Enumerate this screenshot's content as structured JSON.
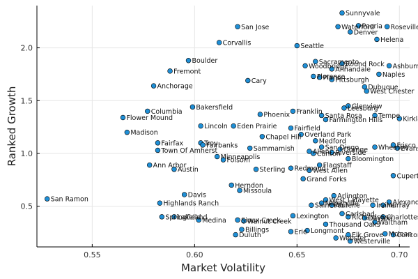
{
  "chart_data": {
    "type": "scatter",
    "title": "",
    "xlabel": "Market Volatility",
    "ylabel": "Ranked Growth",
    "xlim": [
      0.523,
      0.705
    ],
    "ylim": [
      0.115,
      2.4
    ],
    "x_ticks": [
      0.55,
      0.6,
      0.65,
      0.7
    ],
    "x_tick_labels": [
      "0.55",
      "0.60",
      "0.65",
      "0.70"
    ],
    "y_ticks": [
      0.5,
      1.0,
      1.5,
      2.0
    ],
    "y_tick_labels": [
      "0.5",
      "1.0",
      "1.5",
      "2.0"
    ],
    "grid": true,
    "legend": "none",
    "marker_color": "#1f8fd6",
    "points": [
      {
        "label": "Sunnyvale",
        "x": 0.672,
        "y": 2.33
      },
      {
        "label": "San Jose",
        "x": 0.621,
        "y": 2.2
      },
      {
        "label": "Waterford",
        "x": 0.67,
        "y": 2.2
      },
      {
        "label": "Peoria",
        "x": 0.68,
        "y": 2.21
      },
      {
        "label": "Roseville",
        "x": 0.694,
        "y": 2.2
      },
      {
        "label": "Denver",
        "x": 0.676,
        "y": 2.15
      },
      {
        "label": "Helena",
        "x": 0.689,
        "y": 2.08
      },
      {
        "label": "Corvallis",
        "x": 0.612,
        "y": 2.05
      },
      {
        "label": "Seattle",
        "x": 0.65,
        "y": 2.02
      },
      {
        "label": "Boulder",
        "x": 0.597,
        "y": 1.88
      },
      {
        "label": "Sacramento",
        "x": 0.659,
        "y": 1.87
      },
      {
        "label": "Round Rock",
        "x": 0.672,
        "y": 1.85
      },
      {
        "label": "Ashburn",
        "x": 0.695,
        "y": 1.83
      },
      {
        "label": "Woodbridge",
        "x": 0.654,
        "y": 1.83
      },
      {
        "label": "Annandale",
        "x": 0.667,
        "y": 1.8
      },
      {
        "label": "Fremont",
        "x": 0.588,
        "y": 1.78
      },
      {
        "label": "Naples",
        "x": 0.69,
        "y": 1.75
      },
      {
        "label": "Florence",
        "x": 0.658,
        "y": 1.73
      },
      {
        "label": "Plano",
        "x": 0.661,
        "y": 1.72
      },
      {
        "label": "Pittsburgh",
        "x": 0.667,
        "y": 1.7
      },
      {
        "label": "Cary",
        "x": 0.626,
        "y": 1.69
      },
      {
        "label": "Anchorage",
        "x": 0.58,
        "y": 1.64
      },
      {
        "label": "Dubuque",
        "x": 0.683,
        "y": 1.63
      },
      {
        "label": "West Chester",
        "x": 0.684,
        "y": 1.59
      },
      {
        "label": "Glenview",
        "x": 0.675,
        "y": 1.45
      },
      {
        "label": "Bakersfield",
        "x": 0.599,
        "y": 1.44
      },
      {
        "label": "Leesburg",
        "x": 0.673,
        "y": 1.43
      },
      {
        "label": "Columbia",
        "x": 0.577,
        "y": 1.4
      },
      {
        "label": "Franklin",
        "x": 0.648,
        "y": 1.4
      },
      {
        "label": "Phoenix",
        "x": 0.632,
        "y": 1.37
      },
      {
        "label": "Santa Rosa",
        "x": 0.662,
        "y": 1.36
      },
      {
        "label": "Tempe",
        "x": 0.688,
        "y": 1.36
      },
      {
        "label": "Flower Mound",
        "x": 0.565,
        "y": 1.34
      },
      {
        "label": "Kirkland",
        "x": 0.7,
        "y": 1.33
      },
      {
        "label": "Farmington Hills",
        "x": 0.664,
        "y": 1.32
      },
      {
        "label": "Lincoln",
        "x": 0.603,
        "y": 1.26
      },
      {
        "label": "Eden Prairie",
        "x": 0.619,
        "y": 1.26
      },
      {
        "label": "Fairfield",
        "x": 0.647,
        "y": 1.24
      },
      {
        "label": "Madison",
        "x": 0.567,
        "y": 1.2
      },
      {
        "label": "Overland Park",
        "x": 0.652,
        "y": 1.18
      },
      {
        "label": "Chapel Hill",
        "x": 0.633,
        "y": 1.16
      },
      {
        "label": "Medford",
        "x": 0.659,
        "y": 1.12
      },
      {
        "label": "Fairfax",
        "x": 0.582,
        "y": 1.1
      },
      {
        "label": "Troy",
        "x": 0.603,
        "y": 1.1
      },
      {
        "label": "Fairbanks",
        "x": 0.604,
        "y": 1.08
      },
      {
        "label": "Frisco",
        "x": 0.697,
        "y": 1.08
      },
      {
        "label": "Wheaton",
        "x": 0.688,
        "y": 1.06
      },
      {
        "label": "Evanston",
        "x": 0.699,
        "y": 1.05
      },
      {
        "label": "San Diego",
        "x": 0.662,
        "y": 1.06
      },
      {
        "label": "Sammamish",
        "x": 0.627,
        "y": 1.05
      },
      {
        "label": "Orange",
        "x": 0.671,
        "y": 1.04
      },
      {
        "label": "Town Of Amherst",
        "x": 0.582,
        "y": 1.03
      },
      {
        "label": "Allen",
        "x": 0.656,
        "y": 1.02
      },
      {
        "label": "Riverside",
        "x": 0.667,
        "y": 1.01
      },
      {
        "label": "Canton",
        "x": 0.658,
        "y": 1.0
      },
      {
        "label": "Minneapolis",
        "x": 0.611,
        "y": 0.97
      },
      {
        "label": "Bloomington",
        "x": 0.675,
        "y": 0.95
      },
      {
        "label": "Folsom",
        "x": 0.614,
        "y": 0.94
      },
      {
        "label": "Ann Arbor",
        "x": 0.578,
        "y": 0.89
      },
      {
        "label": "Flagstaff",
        "x": 0.661,
        "y": 0.89
      },
      {
        "label": "Redmond",
        "x": 0.647,
        "y": 0.86
      },
      {
        "label": "Sterling",
        "x": 0.63,
        "y": 0.85
      },
      {
        "label": "Austin",
        "x": 0.59,
        "y": 0.85
      },
      {
        "label": "West Allen",
        "x": 0.656,
        "y": 0.84
      },
      {
        "label": "Cupertino",
        "x": 0.697,
        "y": 0.79
      },
      {
        "label": "Grand Forks",
        "x": 0.653,
        "y": 0.76
      },
      {
        "label": "Herndon",
        "x": 0.618,
        "y": 0.7
      },
      {
        "label": "Missoula",
        "x": 0.622,
        "y": 0.65
      },
      {
        "label": "Davis",
        "x": 0.595,
        "y": 0.61
      },
      {
        "label": "Arlington",
        "x": 0.668,
        "y": 0.6
      },
      {
        "label": "San Ramon",
        "x": 0.528,
        "y": 0.57
      },
      {
        "label": "West Lafayette",
        "x": 0.664,
        "y": 0.56
      },
      {
        "label": "Alexandria",
        "x": 0.695,
        "y": 0.54
      },
      {
        "label": "Naperville",
        "x": 0.662,
        "y": 0.53
      },
      {
        "label": "Highlands Ranch",
        "x": 0.583,
        "y": 0.53
      },
      {
        "label": "Saint Paul",
        "x": 0.657,
        "y": 0.51
      },
      {
        "label": "Abilene",
        "x": 0.667,
        "y": 0.51
      },
      {
        "label": "Irvine",
        "x": 0.687,
        "y": 0.51
      },
      {
        "label": "Murray",
        "x": 0.692,
        "y": 0.51
      },
      {
        "label": "Lexington",
        "x": 0.648,
        "y": 0.41
      },
      {
        "label": "Carlsbad",
        "x": 0.672,
        "y": 0.43
      },
      {
        "label": "Springfield",
        "x": 0.584,
        "y": 0.4
      },
      {
        "label": "Richardson",
        "x": 0.675,
        "y": 0.4
      },
      {
        "label": "Charlottesville",
        "x": 0.692,
        "y": 0.4
      },
      {
        "label": "Lakeland",
        "x": 0.59,
        "y": 0.4
      },
      {
        "label": "Dayton",
        "x": 0.683,
        "y": 0.39
      },
      {
        "label": "Medina",
        "x": 0.602,
        "y": 0.37
      },
      {
        "label": "Sioux Creek",
        "x": 0.621,
        "y": 0.37
      },
      {
        "label": "Walnut Creek",
        "x": 0.624,
        "y": 0.36
      },
      {
        "label": "Waltham",
        "x": 0.688,
        "y": 0.35
      },
      {
        "label": "Thousand Oaks",
        "x": 0.664,
        "y": 0.33
      },
      {
        "label": "Billings",
        "x": 0.623,
        "y": 0.28
      },
      {
        "label": "Erie",
        "x": 0.647,
        "y": 0.26
      },
      {
        "label": "Longmont",
        "x": 0.655,
        "y": 0.27
      },
      {
        "label": "Duluth",
        "x": 0.62,
        "y": 0.23
      },
      {
        "label": "Elk Grove",
        "x": 0.675,
        "y": 0.23
      },
      {
        "label": "Mclean",
        "x": 0.693,
        "y": 0.24
      },
      {
        "label": "Westerville",
        "x": 0.676,
        "y": 0.17
      },
      {
        "label": "Webster",
        "x": 0.669,
        "y": 0.2
      },
      {
        "label": "Concord",
        "x": 0.697,
        "y": 0.23
      }
    ]
  }
}
